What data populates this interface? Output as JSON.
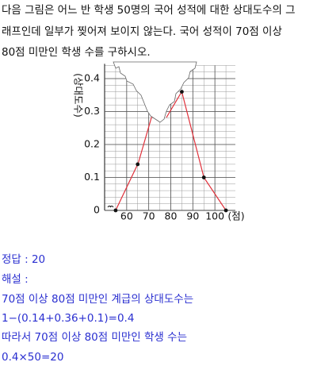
{
  "problem": {
    "lines": [
      "다음 그림은 어느 반 학생 50명의 국어 성적에 대한 상대도수의 그",
      "래프인데 일부가 찢어져 보이지 않는다. 국어 성적이 70점 이상",
      "80점 미만인 학생 수를 구하시오."
    ]
  },
  "chart_data": {
    "type": "line",
    "y_label": "(상대도수)",
    "x_label": "(점)",
    "x": [
      55,
      65,
      75,
      85,
      95,
      105
    ],
    "values": [
      0,
      0.14,
      null,
      0.36,
      0.1,
      0
    ],
    "color": "#e0303a",
    "xlim": [
      50,
      110
    ],
    "xticks": [
      60,
      70,
      80,
      90,
      100
    ],
    "ylim": [
      0,
      0.44
    ],
    "yticks": [
      0,
      0.1,
      0.2,
      0.3,
      0.4
    ],
    "grid": true
  },
  "answer": "정답 : 20",
  "solution": [
    "해설 :",
    "70점 이상 80점 미만인 계급의 상대도수는",
    "1−(0.14+0.36+0.1)=0.4",
    "따라서 70점 이상 80점 미만인 학생 수는",
    "0.4×50=20"
  ]
}
